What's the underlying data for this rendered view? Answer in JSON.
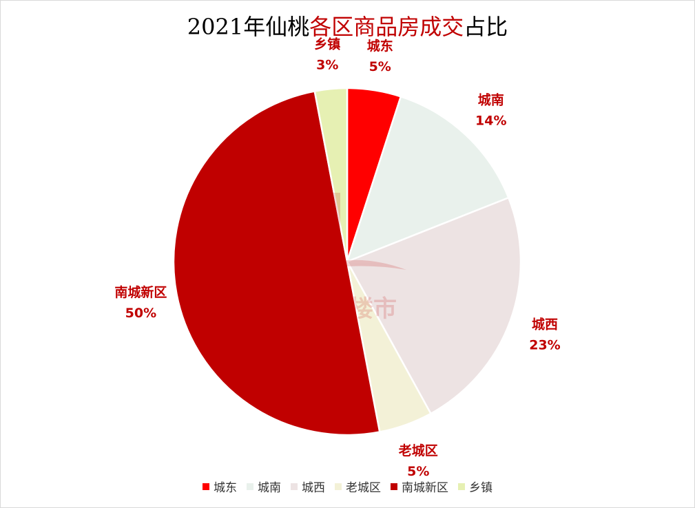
{
  "chart_data": {
    "type": "pie",
    "title_parts": [
      {
        "text": "2021年仙桃",
        "highlight": false
      },
      {
        "text": "各区商品房成交",
        "highlight": true
      },
      {
        "text": "占比",
        "highlight": false
      }
    ],
    "slices": [
      {
        "label": "城东",
        "value": 5,
        "value_label": "5%",
        "color": "#ff0000"
      },
      {
        "label": "城南",
        "value": 14,
        "value_label": "14%",
        "color": "#e9f1ec"
      },
      {
        "label": "城西",
        "value": 23,
        "value_label": "23%",
        "color": "#ede3e3"
      },
      {
        "label": "老城区",
        "value": 5,
        "value_label": "5%",
        "color": "#f3f1d7"
      },
      {
        "label": "南城新区",
        "value": 50,
        "value_label": "50%",
        "color": "#c00000"
      },
      {
        "label": "乡镇",
        "value": 3,
        "value_label": "3%",
        "color": "#e6f0b3"
      }
    ],
    "label_color": "#c00000",
    "legend_position": "bottom"
  },
  "watermark": {
    "text": "仙桃楼市"
  }
}
